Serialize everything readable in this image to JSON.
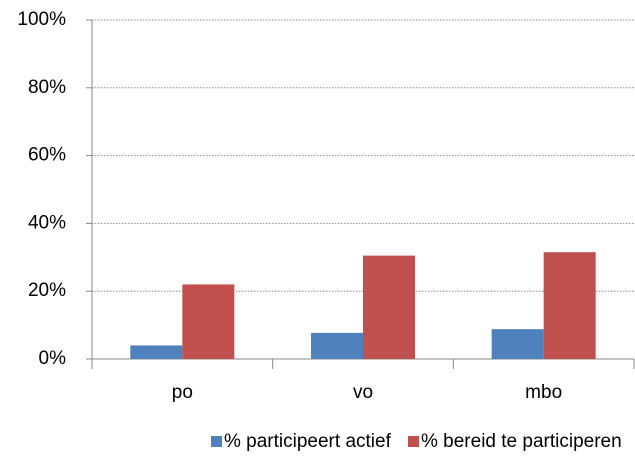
{
  "chart_data": {
    "type": "bar",
    "categories": [
      "po",
      "vo",
      "mbo"
    ],
    "series": [
      {
        "name": "% participeert actief",
        "color": "#4f81bd",
        "values": [
          4,
          7.7,
          8.8
        ]
      },
      {
        "name": "% bereid te participeren",
        "color": "#c0504d",
        "values": [
          22,
          30.5,
          31.5
        ]
      }
    ],
    "ylim": [
      0,
      100
    ],
    "yticks": [
      {
        "value": 0,
        "label": "0%"
      },
      {
        "value": 20,
        "label": "20%"
      },
      {
        "value": 40,
        "label": "40%"
      },
      {
        "value": 60,
        "label": "60%"
      },
      {
        "value": 80,
        "label": "80%"
      },
      {
        "value": 100,
        "label": "100%"
      }
    ],
    "grid": true,
    "legend": "bottom"
  }
}
